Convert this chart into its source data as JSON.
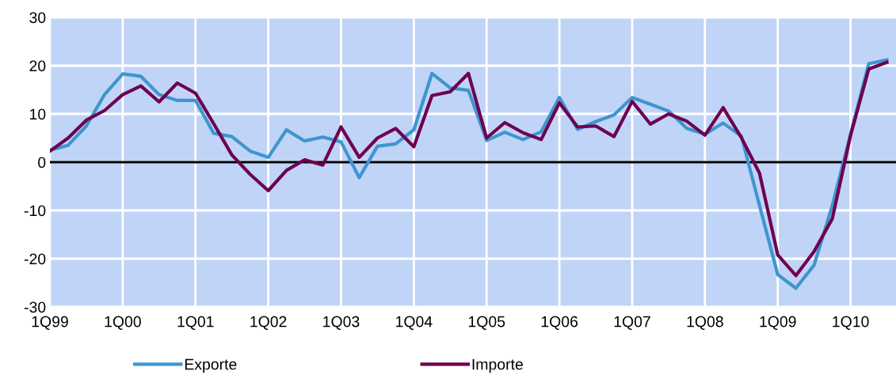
{
  "chart_data": {
    "type": "line",
    "categories": [
      "1Q99",
      null,
      null,
      null,
      "1Q00",
      null,
      null,
      null,
      "1Q01",
      null,
      null,
      null,
      "1Q02",
      null,
      null,
      null,
      "1Q03",
      null,
      null,
      null,
      "1Q04",
      null,
      null,
      null,
      "1Q05",
      null,
      null,
      null,
      "1Q06",
      null,
      null,
      null,
      "1Q07",
      null,
      null,
      null,
      "1Q08",
      null,
      null,
      null,
      "1Q09",
      null,
      null,
      null,
      "1Q10",
      null,
      null
    ],
    "series": [
      {
        "name": "Exporte",
        "color": "#3f95cf",
        "values": [
          2.5,
          3.5,
          7.5,
          14,
          18.3,
          17.8,
          14,
          12.8,
          12.8,
          6,
          5.3,
          2.3,
          1,
          6.7,
          4.4,
          5.2,
          4.2,
          -3.2,
          3.3,
          3.8,
          6.7,
          18.4,
          15.4,
          14.9,
          4.5,
          6.2,
          4.7,
          6.3,
          13.4,
          6.8,
          8.4,
          9.8,
          13.4,
          12,
          10.6,
          7,
          5.8,
          8.1,
          5.4,
          -9,
          -23.3,
          -26.1,
          -21.3,
          -9,
          5.8,
          20.4,
          21.2
        ]
      },
      {
        "name": "Importe",
        "color": "#6e0050",
        "values": [
          2.3,
          5,
          8.7,
          10.7,
          14,
          15.8,
          12.5,
          16.4,
          14.3,
          8,
          1.5,
          -2.5,
          -5.9,
          -1.7,
          0.5,
          -0.6,
          7.3,
          1,
          5,
          7,
          3.2,
          13.8,
          14.6,
          18.4,
          5,
          8.2,
          6.1,
          4.7,
          12.3,
          7.3,
          7.5,
          5.3,
          12.6,
          7.9,
          10,
          8.5,
          5.6,
          11.3,
          5.1,
          -2.3,
          -19.2,
          -23.5,
          -18.5,
          -11.7,
          5.5,
          19.3,
          20.7
        ]
      }
    ],
    "ylim": [
      -30,
      30
    ],
    "yticks": [
      -30,
      -20,
      -10,
      0,
      10,
      20,
      30
    ],
    "ref_lines": [
      {
        "axis": "y",
        "value": 0,
        "color": "#000000"
      }
    ],
    "grid": true,
    "legend": "bottom",
    "marker": "none",
    "line_style": "solid"
  }
}
